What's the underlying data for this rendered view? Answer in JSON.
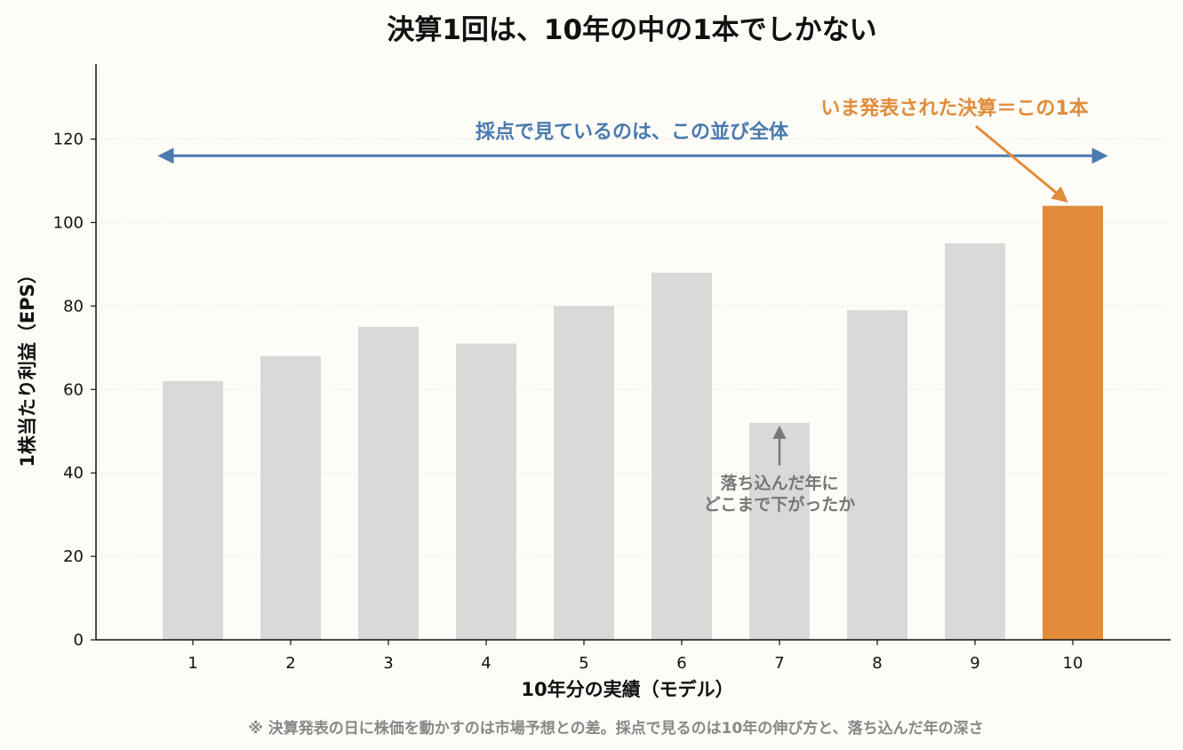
{
  "chart_data": {
    "type": "bar",
    "title": "決算1回は、10年の中の1本でしかない",
    "xlabel": "10年分の実績（モデル）",
    "ylabel": "1株当たり利益（EPS）",
    "categories": [
      "1",
      "2",
      "3",
      "4",
      "5",
      "6",
      "7",
      "8",
      "9",
      "10"
    ],
    "values": [
      62,
      68,
      75,
      71,
      80,
      88,
      52,
      79,
      95,
      104
    ],
    "ylim": [
      0,
      138
    ],
    "yticks": [
      0,
      20,
      40,
      60,
      80,
      100,
      120
    ],
    "grid": "horizontal-dotted",
    "colors": {
      "default_bar": "#d9d9d9",
      "highlight_bar": "#e08c3a",
      "blue": "#4a7ab0",
      "orange": "#e08c3a",
      "gray": "#777777",
      "note": "#888888"
    },
    "highlight_index": 9,
    "annotations": {
      "range_label": "採点で見ているのは、この並び全体",
      "highlight_label": "いま発表された決算＝この1本",
      "dip_label_line1": "落ち込んだ年に",
      "dip_label_line2": "どこまで下がったか",
      "range_y": 116,
      "dip_index": 6
    },
    "footnote": "※ 決算発表の日に株価を動かすのは市場予想との差。採点で見るのは10年の伸び方と、落ち込んだ年の深さ"
  }
}
